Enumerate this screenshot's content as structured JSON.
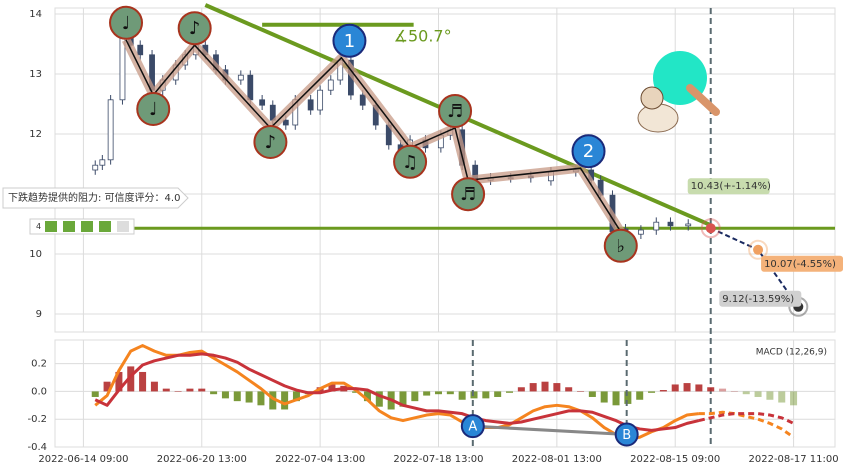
{
  "chart_data": [
    {
      "type": "candlestick",
      "x": [
        1.0,
        1.6,
        2.3,
        3.3,
        4.0,
        4.8,
        5.8,
        6.7,
        7.8,
        8.6,
        9.5,
        10.3,
        11.2,
        12.0,
        13.3,
        14.1,
        15.1,
        16.0,
        17.1,
        17.9,
        19.2,
        20.0,
        20.9,
        21.7,
        22.6,
        23.6,
        24.7,
        25.8,
        26.8,
        27.6,
        28.9,
        30.2,
        31.0,
        32.0,
        33.1,
        34.4,
        36.1,
        37.8,
        39.5,
        41.6,
        42.9,
        43.7,
        44.7,
        45.8,
        47.1,
        48.4,
        49.6,
        51.1
      ],
      "open": [
        11.4,
        11.48,
        11.57,
        12.57,
        13.65,
        13.48,
        13.32,
        12.73,
        12.9,
        13.15,
        13.32,
        13.48,
        13.32,
        13.07,
        12.9,
        12.98,
        12.57,
        12.48,
        12.23,
        12.15,
        12.57,
        12.4,
        12.73,
        12.9,
        13.23,
        12.65,
        12.48,
        12.15,
        11.82,
        11.73,
        11.9,
        11.77,
        11.98,
        12.07,
        11.48,
        11.23,
        11.27,
        11.3,
        11.22,
        11.37,
        11.4,
        11.23,
        10.98,
        10.42,
        10.33,
        10.4,
        10.53,
        10.47
      ],
      "high": [
        11.56,
        11.65,
        12.65,
        13.9,
        13.73,
        13.56,
        13.4,
        12.98,
        13.23,
        13.4,
        13.56,
        13.56,
        13.4,
        13.15,
        13.06,
        13.06,
        12.65,
        12.56,
        12.31,
        12.65,
        12.65,
        12.81,
        12.98,
        13.31,
        13.31,
        12.73,
        12.56,
        12.23,
        11.9,
        11.98,
        11.98,
        12.06,
        12.15,
        12.15,
        11.56,
        11.35,
        11.35,
        11.38,
        11.45,
        11.48,
        11.48,
        11.31,
        11.06,
        10.5,
        10.48,
        10.61,
        10.61,
        10.58
      ],
      "low": [
        11.32,
        11.4,
        11.49,
        12.49,
        13.4,
        13.24,
        12.65,
        12.65,
        12.82,
        13.07,
        13.24,
        13.24,
        12.99,
        12.82,
        12.82,
        12.49,
        12.4,
        12.15,
        12.07,
        12.07,
        12.32,
        12.32,
        12.65,
        12.82,
        12.57,
        12.4,
        12.07,
        11.74,
        11.65,
        11.65,
        11.69,
        11.69,
        11.9,
        11.4,
        11.15,
        11.15,
        11.19,
        11.19,
        11.14,
        11.29,
        11.15,
        10.9,
        10.29,
        10.29,
        10.25,
        10.32,
        10.39,
        10.39
      ],
      "close": [
        11.48,
        11.57,
        12.57,
        13.65,
        13.48,
        13.32,
        12.73,
        12.9,
        13.15,
        13.32,
        13.48,
        13.32,
        13.07,
        12.9,
        12.98,
        12.57,
        12.48,
        12.23,
        12.15,
        12.57,
        12.4,
        12.73,
        12.9,
        13.23,
        12.65,
        12.48,
        12.15,
        11.82,
        11.73,
        11.9,
        11.77,
        11.98,
        12.07,
        11.48,
        11.23,
        11.27,
        11.27,
        11.27,
        11.37,
        11.4,
        11.23,
        10.98,
        10.37,
        10.37,
        10.4,
        10.53,
        10.47,
        10.5
      ],
      "up_color": "#ffffff",
      "down_color": "#3b4a68",
      "xlim": [
        -2.4,
        63.5
      ],
      "ylim": [
        8.7,
        14.1
      ],
      "yticks": [
        9,
        10,
        11,
        12,
        13,
        14
      ],
      "grid": true,
      "pivots": [
        {
          "x": 3.6,
          "y": 13.57,
          "note": "♩"
        },
        {
          "x": 5.9,
          "y": 12.65,
          "note": "♩"
        },
        {
          "x": 9.4,
          "y": 13.48,
          "note": "♪"
        },
        {
          "x": 15.8,
          "y": 12.1,
          "note": "♪"
        },
        {
          "x": 21.8,
          "y": 13.27,
          "wave": "1"
        },
        {
          "x": 27.6,
          "y": 11.77,
          "note": "♫"
        },
        {
          "x": 31.4,
          "y": 12.1,
          "note": "♬"
        },
        {
          "x": 32.5,
          "y": 11.23,
          "note": "♬"
        },
        {
          "x": 42.0,
          "y": 11.43,
          "wave": "2"
        },
        {
          "x": 45.4,
          "y": 10.37,
          "note": "♭"
        }
      ],
      "resistance": {
        "x": [
          10.3,
          53.0
        ],
        "y": [
          14.15,
          10.48
        ],
        "color": "#6b9a1f"
      },
      "support": {
        "y": 10.43,
        "color": "#6b9a1f"
      },
      "angle_line": {
        "x": [
          15.1,
          27.9
        ],
        "y": 13.82
      },
      "angle_label": "∡50.7°",
      "annotation": "下跌趋势提供的阻力: 可信度评分：4.0",
      "score": "4",
      "now_x": 53.0,
      "projection": {
        "x": [
          53.0,
          57.0,
          60.4
        ],
        "y": [
          10.43,
          10.07,
          9.12
        ],
        "value_labels": [
          "10.43(+-1.14%)",
          "10.07(-4.55%)",
          "9.12(-13.59%)"
        ],
        "colors": [
          "#d9534f",
          "#f0a060",
          "#333333"
        ],
        "label_colors": [
          "#c8dcae",
          "#f4b27a",
          "#d0d0d0"
        ]
      }
    },
    {
      "type": "macd",
      "title": "MACD (12,26,9)",
      "x": [
        1,
        2,
        3,
        4,
        5,
        6,
        7,
        8,
        9,
        10,
        11,
        12,
        13,
        14,
        15,
        16,
        17,
        18,
        19,
        20,
        21,
        22,
        23,
        24,
        25,
        26,
        27,
        28,
        29,
        30,
        31,
        32,
        33,
        34,
        35,
        36,
        37,
        38,
        39,
        40,
        41,
        42,
        43,
        44,
        45,
        46,
        47,
        48,
        49,
        50,
        51,
        52,
        53,
        54,
        55,
        56,
        57,
        58,
        59,
        60
      ],
      "histogram": [
        -0.04,
        0.07,
        0.14,
        0.18,
        0.14,
        0.07,
        0.02,
        0,
        0.02,
        0.02,
        -0.02,
        -0.05,
        -0.07,
        -0.08,
        -0.1,
        -0.13,
        -0.13,
        -0.07,
        -0.02,
        0.03,
        0.05,
        0.04,
        -0.01,
        -0.07,
        -0.11,
        -0.13,
        -0.11,
        -0.07,
        -0.03,
        -0.02,
        -0.02,
        -0.06,
        -0.05,
        -0.05,
        -0.04,
        -0.01,
        0.03,
        0.06,
        0.07,
        0.06,
        0.03,
        0,
        -0.04,
        -0.08,
        -0.1,
        -0.09,
        -0.06,
        -0.01,
        0.01,
        0.05,
        0.06,
        0.05,
        0.03,
        0.02,
        0,
        -0.02,
        -0.04,
        -0.06,
        -0.08,
        -0.1
      ],
      "line_x": [
        1,
        2,
        3,
        4,
        5,
        6,
        7,
        8,
        9,
        10,
        11,
        12,
        13,
        14,
        15,
        16,
        17,
        18,
        19,
        20,
        21,
        22,
        23,
        24,
        25,
        26,
        27,
        28,
        29,
        30,
        31,
        32,
        33,
        34,
        35,
        36,
        37,
        38,
        39,
        40,
        41,
        42,
        43,
        44,
        45,
        46,
        47,
        48,
        49,
        50,
        51,
        52
      ],
      "macd": [
        -0.1,
        -0.03,
        0.15,
        0.29,
        0.33,
        0.29,
        0.26,
        0.26,
        0.28,
        0.29,
        0.24,
        0.19,
        0.14,
        0.08,
        0.02,
        -0.05,
        -0.09,
        -0.06,
        -0.03,
        0.02,
        0.06,
        0.06,
        0.01,
        -0.06,
        -0.14,
        -0.19,
        -0.21,
        -0.19,
        -0.17,
        -0.16,
        -0.17,
        -0.22,
        -0.24,
        -0.26,
        -0.26,
        -0.24,
        -0.19,
        -0.14,
        -0.11,
        -0.1,
        -0.11,
        -0.14,
        -0.19,
        -0.26,
        -0.31,
        -0.34,
        -0.33,
        -0.29,
        -0.26,
        -0.21,
        -0.17,
        -0.16
      ],
      "signal": [
        -0.06,
        -0.1,
        0.01,
        0.11,
        0.19,
        0.22,
        0.24,
        0.26,
        0.26,
        0.27,
        0.26,
        0.24,
        0.21,
        0.16,
        0.12,
        0.08,
        0.04,
        0.01,
        -0.01,
        -0.01,
        0.01,
        0.02,
        0.02,
        0.01,
        -0.03,
        -0.06,
        -0.1,
        -0.12,
        -0.14,
        -0.14,
        -0.15,
        -0.16,
        -0.19,
        -0.21,
        -0.22,
        -0.23,
        -0.22,
        -0.2,
        -0.18,
        -0.16,
        -0.14,
        -0.14,
        -0.15,
        -0.18,
        -0.21,
        -0.25,
        -0.27,
        -0.28,
        -0.27,
        -0.26,
        -0.23,
        -0.21
      ],
      "forecast": {
        "x": [
          52,
          53,
          54,
          55,
          56,
          57,
          58,
          59,
          60
        ],
        "macd": [
          -0.16,
          -0.16,
          -0.15,
          -0.16,
          -0.18,
          -0.2,
          -0.23,
          -0.27,
          -0.33
        ],
        "signal": [
          -0.21,
          -0.19,
          -0.17,
          -0.16,
          -0.16,
          -0.16,
          -0.17,
          -0.19,
          -0.23
        ]
      },
      "macd_color": "#f5841f",
      "signal_color": "#c8333a",
      "up_color": "#b22c2c",
      "down_color": "#6b8e23",
      "points": [
        {
          "x": 32.9,
          "y": -0.25,
          "label": "A"
        },
        {
          "x": 45.9,
          "y": -0.31,
          "label": "B"
        }
      ],
      "xlim": [
        -2.4,
        63.5
      ],
      "ylim": [
        -0.4,
        0.37
      ],
      "yticks": [
        0.2,
        {
          "value": 0,
          "label": "0.0"
        },
        -0.2,
        -0.4
      ],
      "xticks": [
        {
          "value": 0,
          "label": "2022-06-14 09:00"
        },
        {
          "value": 10,
          "label": "2022-06-20 13:00"
        },
        {
          "value": 20,
          "label": "2022-07-04 13:00"
        },
        {
          "value": 30,
          "label": "2022-07-18 13:00"
        },
        {
          "value": 40,
          "label": "2022-08-01 13:00"
        },
        {
          "value": 50,
          "label": "2022-08-15 09:00"
        },
        {
          "value": 60,
          "label": "2022-08-17 11:00"
        }
      ],
      "grid": true
    }
  ]
}
